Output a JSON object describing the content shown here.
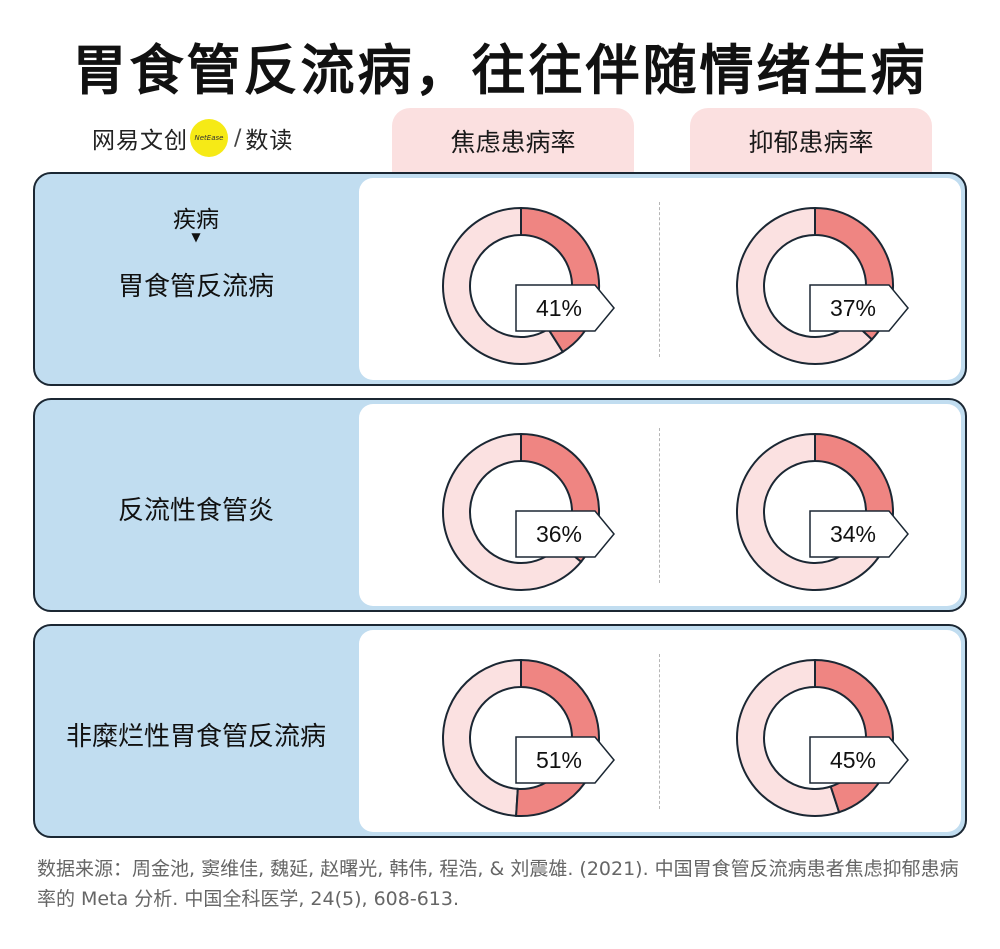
{
  "title": "胃食管反流病，往往伴随情绪生病",
  "brand": {
    "name": "网易文创",
    "badge": "NetEase",
    "separator": "/",
    "sub": "数读"
  },
  "row_header": {
    "label": "疾病",
    "arrow": "▼"
  },
  "colors": {
    "ring_filled": "#ef8582",
    "ring_rest": "#fbe1e1",
    "ring_stroke": "#1b2733",
    "row_bg": "#c1ddf0",
    "tab_bg": "#fbe0e0"
  },
  "chart_data": {
    "type": "pie",
    "variant": "donut",
    "title": "胃食管反流病，往往伴随情绪生病",
    "columns": [
      "焦虑患病率",
      "抑郁患病率"
    ],
    "rows": [
      {
        "disease": "胃食管反流病",
        "anxiety": 41,
        "depression": 37,
        "anxiety_label": "41%",
        "depression_label": "37%"
      },
      {
        "disease": "反流性食管炎",
        "anxiety": 36,
        "depression": 34,
        "anxiety_label": "36%",
        "depression_label": "34%"
      },
      {
        "disease": "非糜烂性胃食管反流病",
        "anxiety": 51,
        "depression": 45,
        "anxiety_label": "51%",
        "depression_label": "45%"
      }
    ],
    "unit": "%"
  },
  "source": "数据来源：周金池, 窦维佳, 魏延, 赵曙光, 韩伟, 程浩, & 刘震雄. (2021). 中国胃食管反流病患者焦虑抑郁患病率的 Meta 分析. 中国全科医学, 24(5), 608-613."
}
